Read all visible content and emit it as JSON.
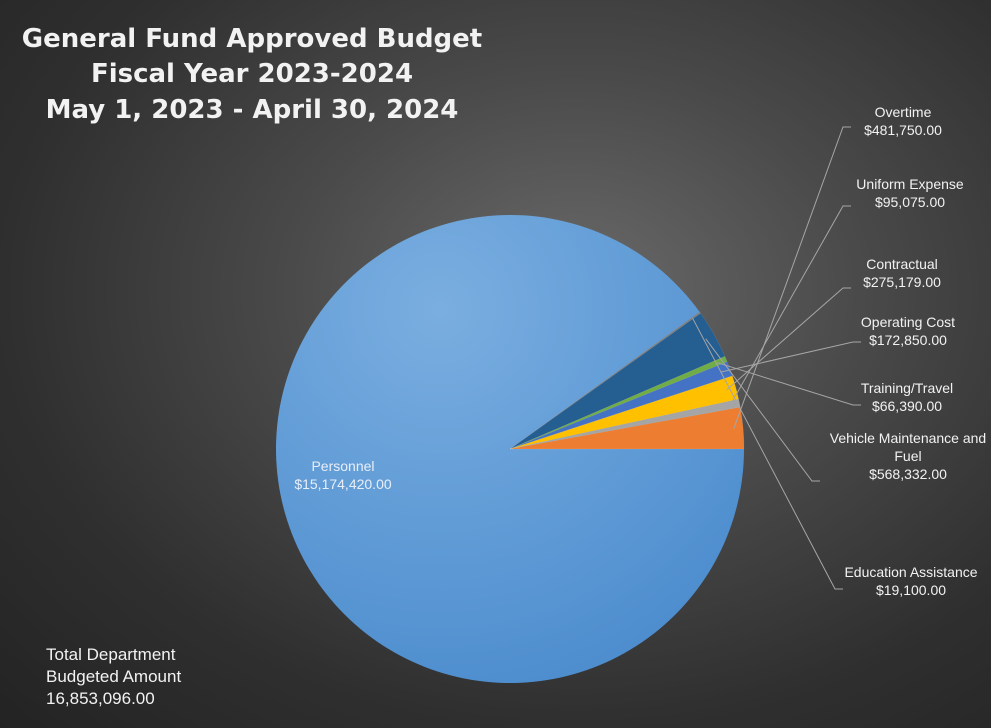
{
  "chart_data": {
    "type": "pie",
    "title": [
      "General Fund Approved Budget",
      "Fiscal Year 2023-2024",
      "May 1, 2023 - April 30, 2024"
    ],
    "slices": [
      {
        "label": [
          "Personnel"
        ],
        "value_text": "$15,174,420.00",
        "value": 15174420,
        "color": "#5b9bd5"
      },
      {
        "label": [
          "Education Assistance"
        ],
        "value_text": "$19,100.00",
        "value": 19100,
        "color": "#7f7f7f"
      },
      {
        "label": [
          "Vehicle Maintenance and",
          "Fuel"
        ],
        "value_text": "$568,332.00",
        "value": 568332,
        "color": "#255e91"
      },
      {
        "label": [
          "Training/Travel"
        ],
        "value_text": "$66,390.00",
        "value": 66390,
        "color": "#70ad47"
      },
      {
        "label": [
          "Operating Cost"
        ],
        "value_text": "$172,850.00",
        "value": 172850,
        "color": "#4472c4"
      },
      {
        "label": [
          "Contractual"
        ],
        "value_text": "$275,179.00",
        "value": 275179,
        "color": "#ffc000"
      },
      {
        "label": [
          "Uniform Expense"
        ],
        "value_text": "$95,075.00",
        "value": 95075,
        "color": "#a5a5a5"
      },
      {
        "label": [
          "Overtime"
        ],
        "value_text": "$481,750.00",
        "value": 481750,
        "color": "#ed7d31"
      }
    ],
    "start_angle_deg": 0,
    "direction": "clockwise"
  },
  "total_note": {
    "line1": "Total Department",
    "line2": "Budgeted Amount",
    "line3": "16,853,096.00"
  }
}
